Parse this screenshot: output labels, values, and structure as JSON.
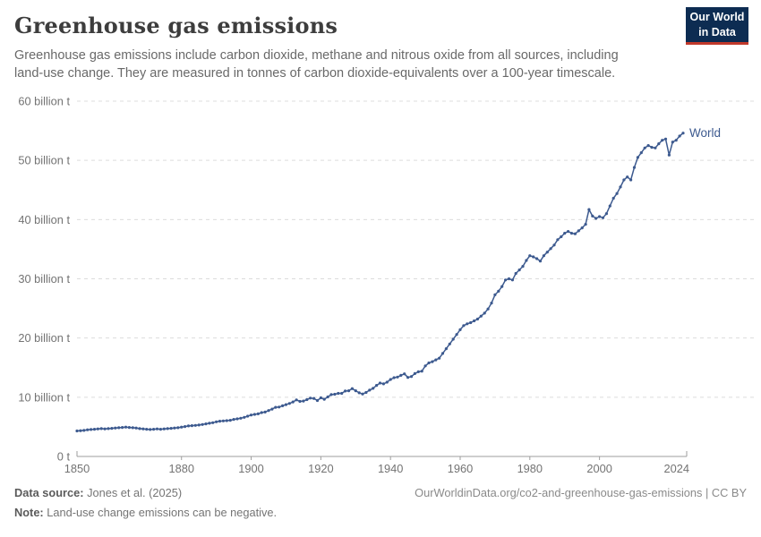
{
  "header": {
    "title": "Greenhouse gas emissions",
    "subtitle": "Greenhouse gas emissions include carbon dioxide, methane and nitrous oxide from all sources, including land-use change. They are measured in tonnes of carbon dioxide-equivalents over a 100-year timescale."
  },
  "logo": {
    "line1": "Our World",
    "line2": "in Data",
    "bg_color": "#0d2c52",
    "accent_color": "#c0392b"
  },
  "chart_data": {
    "type": "line",
    "title": "Greenhouse gas emissions",
    "xlabel": "",
    "ylabel": "",
    "xlim": [
      1850,
      2024
    ],
    "ylim": [
      0,
      60
    ],
    "grid": "horizontal-dashed",
    "legend_position": "end-of-line-label",
    "x_ticks": [
      1850,
      1880,
      1900,
      1920,
      1940,
      1960,
      1980,
      2000,
      2024
    ],
    "y_tick_values": [
      0,
      10,
      20,
      30,
      40,
      50,
      60
    ],
    "y_tick_labels": [
      "0 t",
      "10 billion t",
      "20 billion t",
      "30 billion t",
      "40 billion t",
      "50 billion t",
      "60 billion t"
    ],
    "unit": "billion tonnes CO2-equivalents",
    "series": [
      {
        "name": "World",
        "color": "#3d5a8f",
        "x_start": 1850,
        "x_step": 1,
        "values": [
          4.3,
          4.35,
          4.4,
          4.5,
          4.55,
          4.6,
          4.65,
          4.7,
          4.65,
          4.7,
          4.75,
          4.8,
          4.85,
          4.9,
          4.95,
          4.9,
          4.85,
          4.8,
          4.7,
          4.65,
          4.6,
          4.55,
          4.6,
          4.65,
          4.6,
          4.65,
          4.7,
          4.75,
          4.8,
          4.85,
          4.95,
          5.05,
          5.15,
          5.2,
          5.25,
          5.3,
          5.4,
          5.5,
          5.6,
          5.7,
          5.85,
          5.95,
          6.0,
          6.05,
          6.1,
          6.25,
          6.35,
          6.45,
          6.6,
          6.8,
          7.0,
          7.1,
          7.2,
          7.4,
          7.5,
          7.75,
          8.0,
          8.3,
          8.35,
          8.55,
          8.75,
          8.95,
          9.2,
          9.55,
          9.3,
          9.35,
          9.6,
          9.85,
          9.8,
          9.45,
          9.9,
          9.65,
          10.05,
          10.45,
          10.5,
          10.65,
          10.65,
          11.05,
          11.1,
          11.45,
          11.1,
          10.75,
          10.55,
          10.8,
          11.2,
          11.5,
          12.0,
          12.4,
          12.25,
          12.55,
          13.0,
          13.3,
          13.4,
          13.7,
          13.95,
          13.35,
          13.5,
          14.0,
          14.3,
          14.4,
          15.3,
          15.8,
          16.0,
          16.3,
          16.6,
          17.4,
          18.2,
          19.0,
          19.8,
          20.6,
          21.4,
          22.1,
          22.4,
          22.6,
          22.9,
          23.2,
          23.7,
          24.2,
          24.9,
          25.9,
          27.3,
          27.9,
          28.7,
          29.8,
          30.0,
          29.8,
          30.9,
          31.5,
          32.1,
          33.1,
          33.9,
          33.7,
          33.4,
          33.0,
          33.9,
          34.5,
          35.1,
          35.7,
          36.6,
          37.1,
          37.7,
          38.0,
          37.7,
          37.6,
          38.1,
          38.6,
          39.2,
          41.7,
          40.6,
          40.2,
          40.5,
          40.3,
          41.0,
          42.3,
          43.6,
          44.4,
          45.5,
          46.7,
          47.2,
          46.7,
          48.8,
          50.5,
          51.3,
          52.1,
          52.5,
          52.2,
          52.1,
          52.8,
          53.4,
          53.6,
          50.9,
          53.1,
          53.4,
          54.1,
          54.6
        ]
      }
    ]
  },
  "colors": {
    "grid": "#dcdcdc",
    "axis": "#9e9e9e",
    "tick_label": "#737373",
    "series_world": "#3d5a8f"
  },
  "footer": {
    "data_source_label": "Data source:",
    "data_source_value": "Jones et al. (2025)",
    "note_label": "Note:",
    "note_value": "Land-use change emissions can be negative.",
    "url": "OurWorldinData.org/co2-and-greenhouse-gas-emissions",
    "license": "| CC BY"
  }
}
